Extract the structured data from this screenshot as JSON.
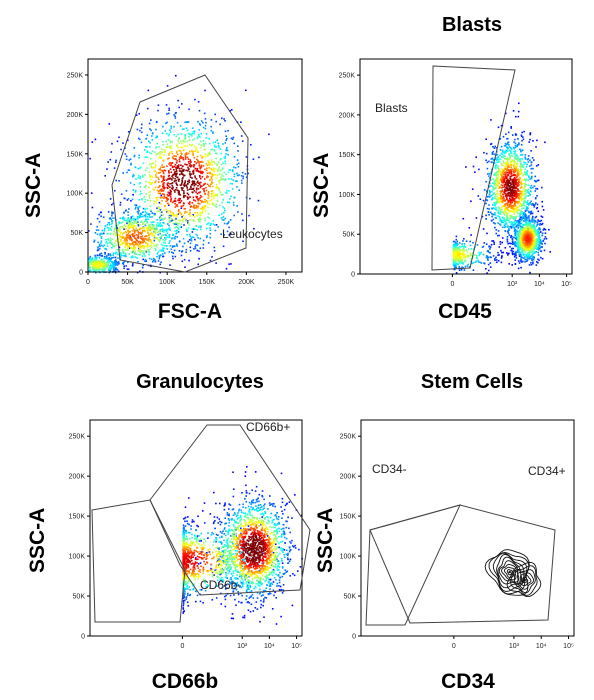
{
  "chart_data": [
    {
      "type": "scatter",
      "title": "",
      "xlabel": "FSC-A",
      "ylabel": "SSC-A",
      "x_scale": "linear",
      "y_scale": "linear",
      "xlim": [
        0,
        262144
      ],
      "ylim": [
        0,
        262144
      ],
      "x_ticks": [
        "0",
        "50K",
        "100K",
        "150K",
        "200K",
        "250K"
      ],
      "y_ticks": [
        "0",
        "50K",
        "100K",
        "150K",
        "200K",
        "250K"
      ],
      "gates": [
        {
          "label": "Leukocytes"
        }
      ],
      "populations": [
        {
          "x": 120000,
          "y": 115000,
          "spread_x": 38000,
          "spread_y": 42000,
          "weight": 0.55
        },
        {
          "x": 60000,
          "y": 45000,
          "spread_x": 30000,
          "spread_y": 18000,
          "weight": 0.3
        },
        {
          "x": 12000,
          "y": 10000,
          "spread_x": 14000,
          "spread_y": 6000,
          "weight": 0.15
        }
      ]
    },
    {
      "type": "scatter",
      "title": "Blasts",
      "xlabel": "CD45",
      "ylabel": "SSC-A",
      "x_scale": "log",
      "y_scale": "linear",
      "ylim": [
        0,
        262144
      ],
      "x_ticks": [
        "0",
        "10^3",
        "10^4",
        "10^5"
      ],
      "y_ticks": [
        "0",
        "50K",
        "100K",
        "150K",
        "200K",
        "250K"
      ],
      "gates": [
        {
          "label": "Blasts"
        }
      ],
      "populations": [
        {
          "x": 800,
          "y": 110000,
          "spread_x": 0.2,
          "spread_y": 30000,
          "weight": 0.5
        },
        {
          "x": 3500,
          "y": 45000,
          "spread_x": 0.12,
          "spread_y": 14000,
          "weight": 0.35
        },
        {
          "x": 20,
          "y": 25000,
          "spread_x": 0.3,
          "spread_y": 9000,
          "weight": 0.15
        }
      ]
    },
    {
      "type": "scatter",
      "title": "Granulocytes",
      "xlabel": "CD66b",
      "ylabel": "SSC-A",
      "x_scale": "log",
      "y_scale": "linear",
      "ylim": [
        0,
        262144
      ],
      "x_ticks": [
        "0",
        "10^3",
        "10^4",
        "10^5"
      ],
      "y_ticks": [
        "0",
        "50K",
        "100K",
        "150K",
        "200K",
        "250K"
      ],
      "gates": [
        {
          "label": "CD66b+"
        },
        {
          "label": "CD66b-"
        }
      ],
      "populations": [
        {
          "x": 2500,
          "y": 110000,
          "spread_x": 0.3,
          "spread_y": 30000,
          "weight": 0.6
        },
        {
          "x": 20,
          "y": 95000,
          "spread_x": 0.6,
          "spread_y": 22000,
          "weight": 0.4
        }
      ]
    },
    {
      "type": "contour",
      "title": "Stem Cells",
      "xlabel": "CD34",
      "ylabel": "SSC-A",
      "x_scale": "log",
      "y_scale": "linear",
      "ylim": [
        0,
        262144
      ],
      "x_ticks": [
        "0",
        "10^3",
        "10^4",
        "10^5"
      ],
      "y_ticks": [
        "0",
        "50K",
        "100K",
        "150K",
        "200K",
        "250K"
      ],
      "gates": [
        {
          "label": "CD34-"
        },
        {
          "label": "CD34+"
        }
      ],
      "populations": [
        {
          "x": 700,
          "y": 80000,
          "spread_x": 0.25,
          "spread_y": 22000,
          "weight": 0.7
        },
        {
          "x": 2500,
          "y": 70000,
          "spread_x": 0.2,
          "spread_y": 15000,
          "weight": 0.3
        }
      ]
    }
  ]
}
